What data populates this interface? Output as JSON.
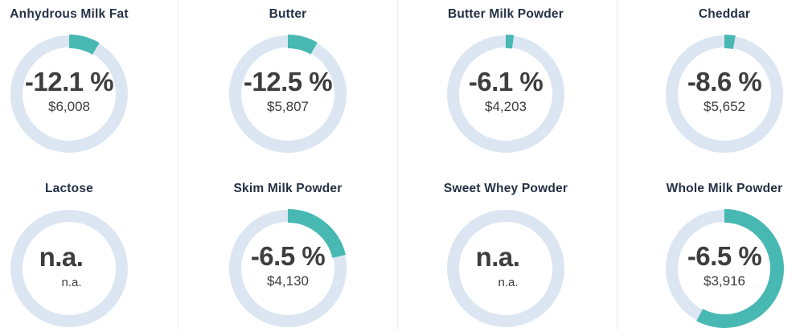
{
  "colors": {
    "ring_track": "#dbe6f2",
    "arc_teal": "#48b8b2",
    "title_text": "#243144",
    "value_text": "#3e3e3e",
    "divider": "#ededed",
    "background": "#ffffff"
  },
  "chart_data": {
    "type": "donut",
    "description_note": "",
    "charts": [
      {
        "title": "Anhydrous Milk Fat",
        "change_percent": "-12.1 %",
        "price": "$6,008",
        "arc_fraction": 0.085
      },
      {
        "title": "Butter",
        "change_percent": "-12.5 %",
        "price": "$5,807",
        "arc_fraction": 0.083
      },
      {
        "title": "Butter Milk Powder",
        "change_percent": "-6.1 %",
        "price": "$4,203",
        "arc_fraction": 0.022
      },
      {
        "title": "Cheddar",
        "change_percent": "-8.6 %",
        "price": "$5,652",
        "arc_fraction": 0.03
      },
      {
        "title": "Lactose",
        "change_percent": "n.a.",
        "price": "n.a.",
        "arc_fraction": 0
      },
      {
        "title": "Skim Milk Powder",
        "change_percent": "-6.5 %",
        "price": "$4,130",
        "arc_fraction": 0.213
      },
      {
        "title": "Sweet Whey Powder",
        "change_percent": "n.a.",
        "price": "n.a.",
        "arc_fraction": 0
      },
      {
        "title": "Whole Milk Powder",
        "change_percent": "-6.5 %",
        "price": "$3,916",
        "arc_fraction": 0.578
      }
    ]
  },
  "layout_labels": {
    "grid": "2 rows x 4 columns of donut KPI tiles"
  }
}
